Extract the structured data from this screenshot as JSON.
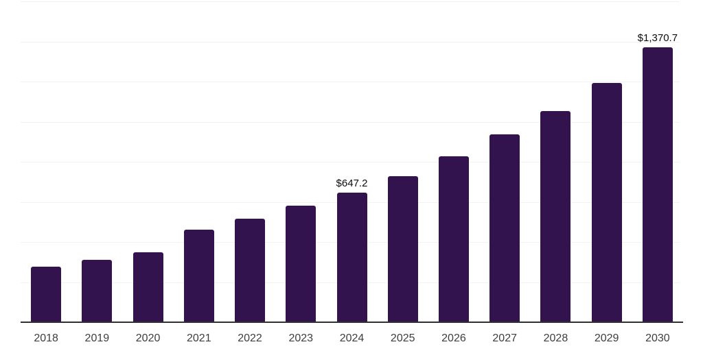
{
  "chart_data": {
    "type": "bar",
    "title": "",
    "xlabel": "",
    "ylabel": "",
    "categories": [
      "2018",
      "2019",
      "2020",
      "2021",
      "2022",
      "2023",
      "2024",
      "2025",
      "2026",
      "2027",
      "2028",
      "2029",
      "2030"
    ],
    "values": [
      276.6,
      310.6,
      348.1,
      460.8,
      515.4,
      580.2,
      647.2,
      728.7,
      826.0,
      935.2,
      1054.7,
      1194.6,
      1370.7
    ],
    "data_labels": {
      "2024": "$647.2",
      "2030": "$1,370.7"
    },
    "ylim": [
      0,
      1600
    ],
    "grid_step": 200,
    "grid": "horizontal",
    "legend": "none",
    "y_tick_labels_visible": false,
    "colors": {
      "bar": "#32134e",
      "gridline": "#f2f2f2",
      "axis_line": "#303030",
      "x_tick_label": "#3d3d3d",
      "data_label": "#0c0c0c",
      "background": "#ffffff"
    }
  }
}
